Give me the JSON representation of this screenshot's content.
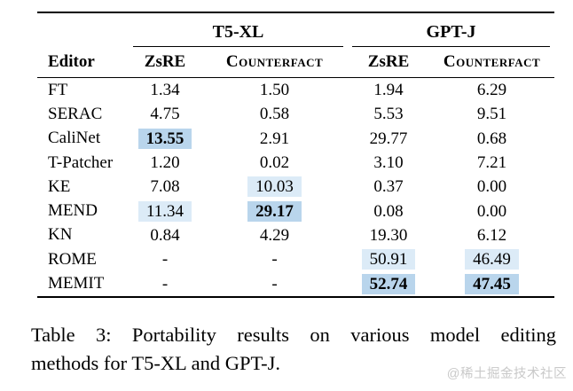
{
  "table": {
    "editor_header": "Editor",
    "groups": [
      {
        "label": "T5-XL",
        "columns": [
          "ZsRE",
          "Counterfact"
        ]
      },
      {
        "label": "GPT-J",
        "columns": [
          "ZsRE",
          "Counterfact"
        ]
      }
    ],
    "rows": [
      {
        "editor": "FT",
        "cells": [
          {
            "value": "1.34"
          },
          {
            "value": "1.50"
          },
          {
            "value": "1.94"
          },
          {
            "value": "6.29"
          }
        ]
      },
      {
        "editor": "SERAC",
        "cells": [
          {
            "value": "4.75"
          },
          {
            "value": "0.58"
          },
          {
            "value": "5.53"
          },
          {
            "value": "9.51"
          }
        ]
      },
      {
        "editor": "CaliNet",
        "cells": [
          {
            "value": "13.55",
            "highlight": "dark",
            "bold": true
          },
          {
            "value": "2.91"
          },
          {
            "value": "29.77"
          },
          {
            "value": "0.68"
          }
        ]
      },
      {
        "editor": "T-Patcher",
        "cells": [
          {
            "value": "1.20"
          },
          {
            "value": "0.02"
          },
          {
            "value": "3.10"
          },
          {
            "value": "7.21"
          }
        ]
      },
      {
        "editor": "KE",
        "cells": [
          {
            "value": "7.08"
          },
          {
            "value": "10.03",
            "highlight": "light"
          },
          {
            "value": "0.37"
          },
          {
            "value": "0.00"
          }
        ]
      },
      {
        "editor": "MEND",
        "cells": [
          {
            "value": "11.34",
            "highlight": "light"
          },
          {
            "value": "29.17",
            "highlight": "dark",
            "bold": true
          },
          {
            "value": "0.08"
          },
          {
            "value": "0.00"
          }
        ]
      },
      {
        "editor": "KN",
        "cells": [
          {
            "value": "0.84"
          },
          {
            "value": "4.29"
          },
          {
            "value": "19.30"
          },
          {
            "value": "6.12"
          }
        ]
      },
      {
        "editor": "ROME",
        "cells": [
          {
            "value": "-"
          },
          {
            "value": "-"
          },
          {
            "value": "50.91",
            "highlight": "light"
          },
          {
            "value": "46.49",
            "highlight": "light"
          }
        ]
      },
      {
        "editor": "MEMIT",
        "cells": [
          {
            "value": "-"
          },
          {
            "value": "-"
          },
          {
            "value": "52.74",
            "highlight": "dark",
            "bold": true
          },
          {
            "value": "47.45",
            "highlight": "dark",
            "bold": true
          }
        ]
      }
    ]
  },
  "caption": {
    "line1": "Table 3: Portability results on various model editing",
    "line2": "methods for T5-XL and GPT-J."
  },
  "watermark": "@稀土掘金技术社区",
  "colors": {
    "highlight_light": "#dcebf7",
    "highlight_dark": "#b9d5ec"
  }
}
